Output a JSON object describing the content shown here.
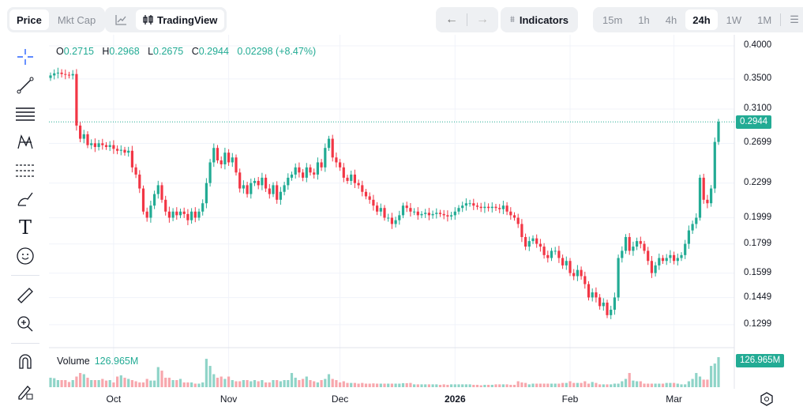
{
  "toolbar": {
    "price": "Price",
    "mkt_cap": "Mkt Cap",
    "tradingview": "TradingView",
    "indicators": "Indicators",
    "intervals": [
      "15m",
      "1h",
      "4h",
      "24h",
      "1W",
      "1M"
    ],
    "active_interval": "24h"
  },
  "ohlc": {
    "o_label": "O",
    "o": "0.2715",
    "h_label": "H",
    "h": "0.2968",
    "l_label": "L",
    "l": "0.2675",
    "c_label": "C",
    "c": "0.2944",
    "change": "0.02298 (+8.47%)"
  },
  "volume": {
    "label": "Volume",
    "value": "126.965M"
  },
  "colors": {
    "up": "#22ab94",
    "down": "#f23645",
    "up_vol": "#8fd4c8",
    "down_vol": "#f7a7ad"
  },
  "chart_data": {
    "type": "candlestick",
    "price_axis_ticks": [
      "0.4000",
      "0.3500",
      "0.3100",
      "0.2699",
      "0.2299",
      "0.1999",
      "0.1799",
      "0.1599",
      "0.1449",
      "0.1299"
    ],
    "current_price": "0.2944",
    "time_axis_ticks": [
      {
        "label": "Oct",
        "day": 17
      },
      {
        "label": "Nov",
        "day": 48
      },
      {
        "label": "Dec",
        "day": 78
      },
      {
        "label": "2026",
        "day": 109,
        "bold": true
      },
      {
        "label": "Feb",
        "day": 140
      },
      {
        "label": "Mar",
        "day": 168
      }
    ],
    "closes": [
      0.355,
      0.358,
      0.359,
      0.357,
      0.356,
      0.355,
      0.357,
      0.29,
      0.275,
      0.28,
      0.268,
      0.27,
      0.266,
      0.27,
      0.268,
      0.266,
      0.268,
      0.264,
      0.262,
      0.263,
      0.26,
      0.262,
      0.245,
      0.238,
      0.225,
      0.205,
      0.2,
      0.21,
      0.22,
      0.228,
      0.215,
      0.205,
      0.2,
      0.205,
      0.202,
      0.205,
      0.203,
      0.198,
      0.205,
      0.2,
      0.205,
      0.212,
      0.23,
      0.25,
      0.265,
      0.252,
      0.248,
      0.26,
      0.25,
      0.255,
      0.24,
      0.225,
      0.228,
      0.22,
      0.23,
      0.232,
      0.228,
      0.235,
      0.225,
      0.22,
      0.228,
      0.215,
      0.222,
      0.228,
      0.235,
      0.238,
      0.245,
      0.24,
      0.235,
      0.245,
      0.24,
      0.238,
      0.25,
      0.245,
      0.265,
      0.275,
      0.255,
      0.25,
      0.245,
      0.235,
      0.232,
      0.238,
      0.23,
      0.228,
      0.222,
      0.218,
      0.215,
      0.21,
      0.205,
      0.208,
      0.2,
      0.2,
      0.195,
      0.198,
      0.202,
      0.21,
      0.208,
      0.205,
      0.205,
      0.202,
      0.203,
      0.204,
      0.202,
      0.203,
      0.204,
      0.203,
      0.202,
      0.201,
      0.202,
      0.205,
      0.208,
      0.21,
      0.212,
      0.212,
      0.21,
      0.209,
      0.208,
      0.209,
      0.208,
      0.209,
      0.208,
      0.207,
      0.21,
      0.205,
      0.202,
      0.2,
      0.195,
      0.185,
      0.178,
      0.182,
      0.184,
      0.18,
      0.178,
      0.172,
      0.17,
      0.175,
      0.175,
      0.17,
      0.165,
      0.168,
      0.16,
      0.158,
      0.162,
      0.158,
      0.153,
      0.145,
      0.148,
      0.145,
      0.14,
      0.142,
      0.135,
      0.138,
      0.145,
      0.17,
      0.175,
      0.185,
      0.175,
      0.178,
      0.182,
      0.18,
      0.175,
      0.168,
      0.16,
      0.165,
      0.17,
      0.168,
      0.17,
      0.172,
      0.168,
      0.17,
      0.172,
      0.18,
      0.19,
      0.195,
      0.2,
      0.235,
      0.215,
      0.212,
      0.225,
      0.2715,
      0.2944
    ],
    "volumes_m": [
      40,
      38,
      30,
      30,
      30,
      22,
      30,
      45,
      60,
      55,
      40,
      30,
      30,
      30,
      35,
      28,
      30,
      20,
      45,
      50,
      40,
      35,
      30,
      25,
      20,
      20,
      35,
      28,
      28,
      85,
      70,
      40,
      40,
      30,
      30,
      35,
      20,
      20,
      20,
      15,
      15,
      20,
      120,
      90,
      55,
      40,
      45,
      35,
      45,
      30,
      25,
      25,
      30,
      30,
      25,
      30,
      25,
      30,
      20,
      20,
      30,
      30,
      25,
      30,
      30,
      60,
      40,
      30,
      35,
      45,
      30,
      25,
      20,
      30,
      35,
      55,
      35,
      30,
      20,
      25,
      18,
      18,
      18,
      15,
      18,
      15,
      15,
      16,
      15,
      15,
      15,
      15,
      15,
      15,
      15,
      17,
      17,
      18,
      12,
      12,
      12,
      12,
      12,
      12,
      12,
      10,
      12,
      10,
      12,
      12,
      12,
      12,
      12,
      12,
      10,
      10,
      8,
      10,
      10,
      10,
      12,
      12,
      12,
      12,
      10,
      10,
      25,
      20,
      18,
      12,
      15,
      15,
      15,
      15,
      15,
      15,
      15,
      15,
      18,
      18,
      25,
      18,
      18,
      18,
      25,
      15,
      22,
      18,
      12,
      12,
      12,
      12,
      15,
      15,
      25,
      35,
      60,
      28,
      25,
      25,
      15,
      15,
      15,
      15,
      15,
      15,
      18,
      18,
      18,
      15,
      12,
      12,
      25,
      35,
      60,
      45,
      32,
      32,
      90,
      100,
      126.965
    ]
  }
}
